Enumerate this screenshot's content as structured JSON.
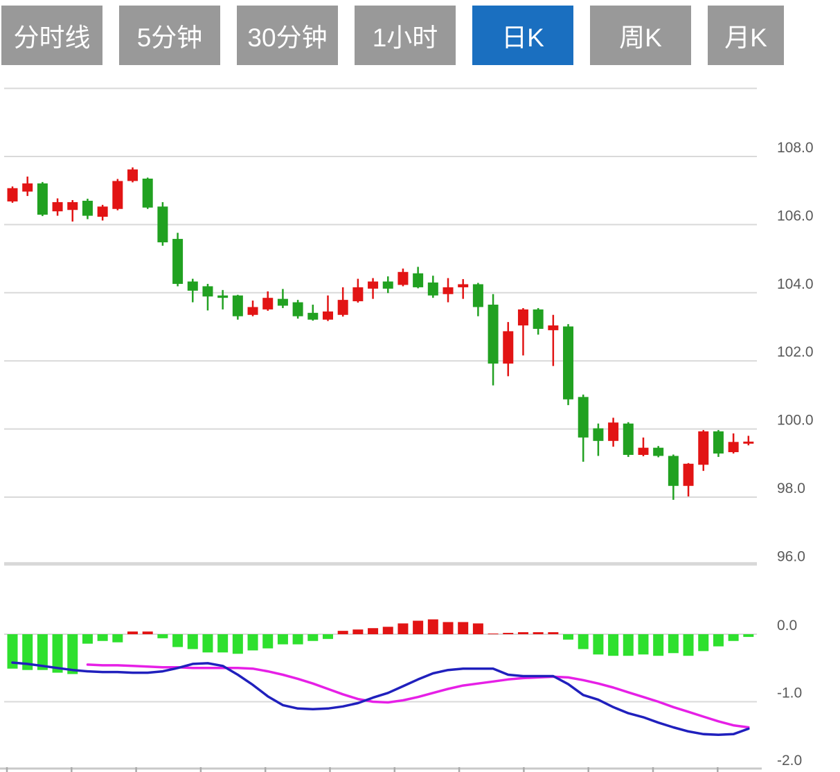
{
  "tabs": [
    {
      "id": "timeline",
      "label": "分时线",
      "active": false
    },
    {
      "id": "5min",
      "label": "5分钟",
      "active": false
    },
    {
      "id": "30min",
      "label": "30分钟",
      "active": false
    },
    {
      "id": "1hour",
      "label": "1小时",
      "active": false
    },
    {
      "id": "daily",
      "label": "日K",
      "active": true
    },
    {
      "id": "weekly",
      "label": "周K",
      "active": false
    },
    {
      "id": "monthly",
      "label": "月K",
      "active": false
    }
  ],
  "colors": {
    "tab_bg": "#999999",
    "tab_active_bg": "#1a6fc0",
    "tab_text": "#ffffff",
    "candle_up": "#e21414",
    "candle_down": "#21a121",
    "hist_up": "#e21414",
    "hist_down": "#2ee02e",
    "dif_line": "#2020bd",
    "dea_line": "#e620e6",
    "grid": "#d9d9d9",
    "panel_divider": "#d8d8d8",
    "axis": "#c9c9c9",
    "tick": "#aaaaaa",
    "axis_label": "#5a5a5a"
  },
  "chart_data": {
    "type": "candlestick+macd",
    "title": "",
    "legend_position": "none",
    "grid": true,
    "main_panel": {
      "ylim": [
        96,
        110
      ],
      "gridline_values": [
        110,
        108,
        106,
        104,
        102,
        100,
        98
      ],
      "divider_value": 96,
      "y_tick_labels": [
        {
          "v": 108,
          "t": "108.0"
        },
        {
          "v": 106,
          "t": "106.0"
        },
        {
          "v": 104,
          "t": "104.0"
        },
        {
          "v": 102,
          "t": "102.0"
        },
        {
          "v": 100,
          "t": "100.0"
        },
        {
          "v": 98,
          "t": "98.0"
        },
        {
          "v": 96,
          "t": "96.0"
        }
      ],
      "candles_ohlc": [
        [
          106.68,
          107.12,
          106.64,
          107.07
        ],
        [
          106.97,
          107.41,
          106.84,
          107.21
        ],
        [
          107.21,
          107.25,
          106.25,
          106.29
        ],
        [
          106.39,
          106.77,
          106.26,
          106.66
        ],
        [
          106.43,
          106.72,
          106.09,
          106.66
        ],
        [
          106.7,
          106.76,
          106.16,
          106.26
        ],
        [
          106.23,
          106.58,
          106.12,
          106.53
        ],
        [
          106.46,
          107.34,
          106.42,
          107.28
        ],
        [
          107.28,
          107.68,
          107.24,
          107.62
        ],
        [
          107.35,
          107.38,
          106.46,
          106.5
        ],
        [
          106.53,
          106.66,
          105.38,
          105.48
        ],
        [
          105.58,
          105.76,
          104.19,
          104.26
        ],
        [
          104.33,
          104.41,
          103.72,
          104.06
        ],
        [
          104.19,
          104.26,
          103.48,
          103.89
        ],
        [
          103.92,
          104.08,
          103.51,
          103.85
        ],
        [
          103.92,
          103.94,
          103.21,
          103.31
        ],
        [
          103.35,
          103.77,
          103.31,
          103.58
        ],
        [
          103.51,
          104.04,
          103.47,
          103.85
        ],
        [
          103.82,
          104.11,
          103.55,
          103.62
        ],
        [
          103.72,
          103.79,
          103.24,
          103.31
        ],
        [
          103.41,
          103.65,
          103.18,
          103.21
        ],
        [
          103.21,
          103.92,
          103.17,
          103.45
        ],
        [
          103.35,
          104.16,
          103.3,
          103.79
        ],
        [
          103.75,
          104.41,
          103.71,
          104.16
        ],
        [
          104.12,
          104.43,
          103.82,
          104.33
        ],
        [
          104.33,
          104.48,
          103.99,
          104.12
        ],
        [
          104.23,
          104.71,
          104.19,
          104.61
        ],
        [
          104.57,
          104.76,
          104.13,
          104.16
        ],
        [
          104.3,
          104.5,
          103.85,
          103.92
        ],
        [
          103.96,
          104.43,
          103.72,
          104.16
        ],
        [
          104.16,
          104.4,
          103.82,
          104.25
        ],
        [
          104.25,
          104.29,
          103.31,
          103.58
        ],
        [
          103.65,
          103.96,
          101.28,
          101.92
        ],
        [
          101.92,
          103.14,
          101.55,
          102.87
        ],
        [
          103.04,
          103.55,
          102.16,
          103.51
        ],
        [
          103.51,
          103.55,
          102.77,
          102.94
        ],
        [
          102.9,
          103.35,
          101.85,
          103.04
        ],
        [
          103.01,
          103.08,
          100.7,
          100.87
        ],
        [
          100.94,
          101.01,
          99.04,
          99.75
        ],
        [
          100.02,
          100.16,
          99.21,
          99.65
        ],
        [
          99.65,
          100.33,
          99.48,
          100.19
        ],
        [
          100.16,
          100.2,
          99.18,
          99.24
        ],
        [
          99.24,
          99.75,
          99.2,
          99.45
        ],
        [
          99.45,
          99.5,
          99.17,
          99.21
        ],
        [
          99.21,
          99.25,
          97.92,
          98.33
        ],
        [
          98.33,
          99.0,
          98.02,
          98.98
        ],
        [
          98.95,
          99.97,
          98.77,
          99.93
        ],
        [
          99.93,
          99.97,
          99.18,
          99.28
        ],
        [
          99.32,
          99.87,
          99.28,
          99.62
        ],
        [
          99.57,
          99.8,
          99.52,
          99.63
        ]
      ]
    },
    "macd_panel": {
      "ylim": [
        -2,
        1
      ],
      "gridline_values": [
        0,
        -1
      ],
      "y_tick_labels": [
        {
          "v": 0,
          "t": "0.0"
        },
        {
          "v": -1,
          "t": "-1.0"
        },
        {
          "v": -2,
          "t": "-2.0"
        }
      ],
      "histogram": [
        -0.51,
        -0.53,
        -0.53,
        -0.57,
        -0.59,
        -0.14,
        -0.1,
        -0.12,
        0.04,
        0.04,
        -0.06,
        -0.19,
        -0.22,
        -0.27,
        -0.27,
        -0.29,
        -0.24,
        -0.21,
        -0.15,
        -0.15,
        -0.1,
        -0.07,
        0.05,
        0.07,
        0.09,
        0.11,
        0.16,
        0.2,
        0.22,
        0.18,
        0.18,
        0.16,
        0.01,
        0.02,
        0.03,
        0.03,
        0.03,
        -0.08,
        -0.22,
        -0.3,
        -0.32,
        -0.32,
        -0.3,
        -0.32,
        -0.28,
        -0.32,
        -0.25,
        -0.18,
        -0.1,
        -0.04
      ],
      "dif": [
        -0.42,
        -0.44,
        -0.47,
        -0.5,
        -0.53,
        -0.55,
        -0.56,
        -0.56,
        -0.57,
        -0.57,
        -0.55,
        -0.5,
        -0.44,
        -0.43,
        -0.47,
        -0.6,
        -0.75,
        -0.92,
        -1.05,
        -1.1,
        -1.11,
        -1.1,
        -1.07,
        -1.02,
        -0.94,
        -0.87,
        -0.77,
        -0.67,
        -0.58,
        -0.53,
        -0.51,
        -0.51,
        -0.51,
        -0.6,
        -0.62,
        -0.62,
        -0.62,
        -0.74,
        -0.9,
        -0.97,
        -1.08,
        -1.17,
        -1.23,
        -1.31,
        -1.38,
        -1.44,
        -1.48,
        -1.49,
        -1.48,
        -1.4
      ],
      "dea": [
        null,
        null,
        null,
        null,
        null,
        -0.45,
        -0.46,
        -0.46,
        -0.47,
        -0.48,
        -0.49,
        -0.49,
        -0.5,
        -0.5,
        -0.5,
        -0.5,
        -0.51,
        -0.55,
        -0.6,
        -0.66,
        -0.73,
        -0.81,
        -0.89,
        -0.96,
        -1.0,
        -1.01,
        -0.98,
        -0.93,
        -0.87,
        -0.81,
        -0.76,
        -0.73,
        -0.7,
        -0.67,
        -0.65,
        -0.64,
        -0.63,
        -0.64,
        -0.68,
        -0.73,
        -0.79,
        -0.86,
        -0.93,
        -1.0,
        -1.08,
        -1.15,
        -1.22,
        -1.29,
        -1.35,
        -1.38
      ]
    }
  }
}
